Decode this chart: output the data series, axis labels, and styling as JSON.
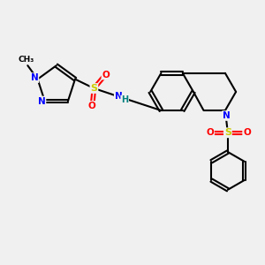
{
  "bg_color": "#f0f0f0",
  "bond_color": "#000000",
  "bond_width": 1.5,
  "figsize": [
    3.0,
    3.0
  ],
  "dpi": 100,
  "atom_colors": {
    "N": "#0000ff",
    "O": "#ff0000",
    "S": "#cccc00",
    "C": "#000000",
    "H": "#008080"
  }
}
